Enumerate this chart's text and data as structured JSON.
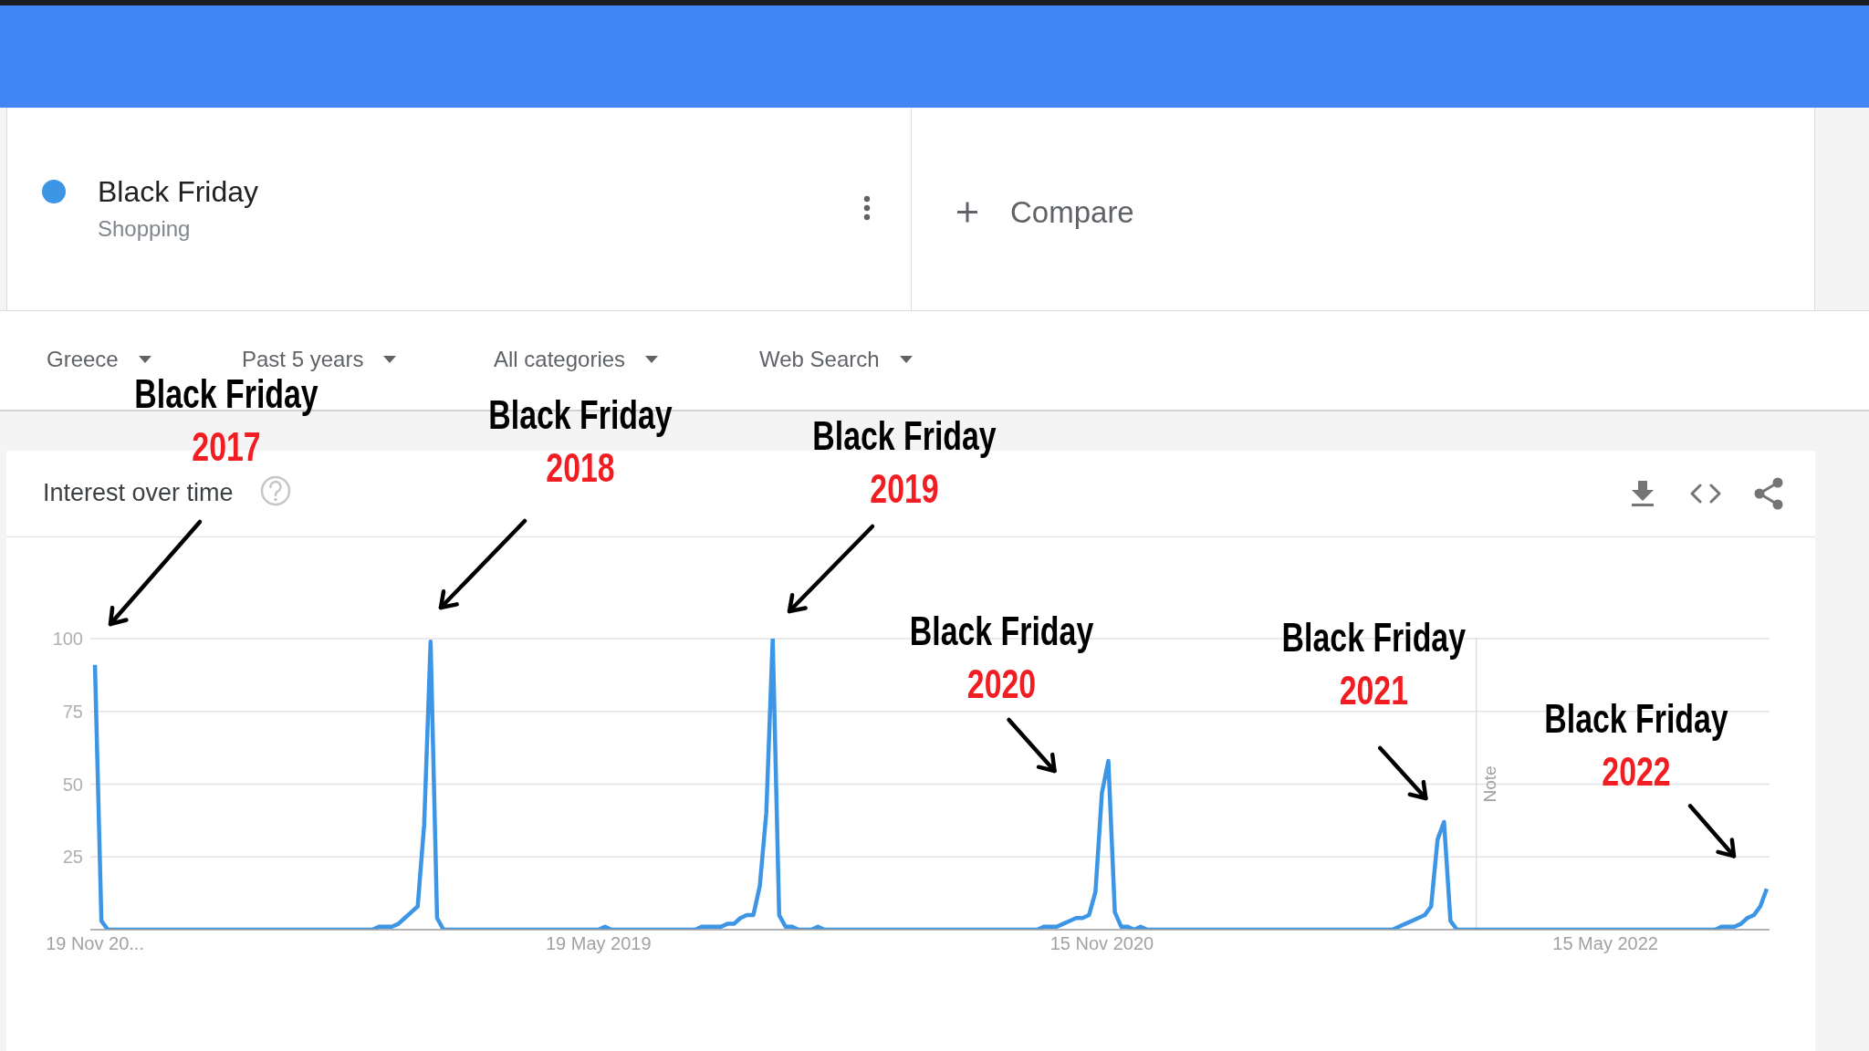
{
  "chart_data": {
    "type": "line",
    "title": "Interest over time",
    "x": [
      "2017-11-19",
      "2017-11-26",
      "2017-12-03",
      "2018-09-16",
      "2018-09-23",
      "2018-10-07",
      "2018-10-14",
      "2018-10-21",
      "2018-10-28",
      "2018-11-04",
      "2018-11-11",
      "2018-11-18",
      "2018-11-25",
      "2018-12-02",
      "2019-05-19",
      "2019-05-26",
      "2019-06-02",
      "2019-09-01",
      "2019-09-08",
      "2019-09-22",
      "2019-09-29",
      "2019-10-06",
      "2019-10-13",
      "2019-10-20",
      "2019-10-27",
      "2019-11-03",
      "2019-11-10",
      "2019-11-17",
      "2019-11-24",
      "2019-12-01",
      "2019-12-08",
      "2019-12-15",
      "2019-12-22",
      "2020-01-05",
      "2020-01-12",
      "2020-01-19",
      "2020-09-06",
      "2020-09-13",
      "2020-09-27",
      "2020-10-04",
      "2020-10-11",
      "2020-10-18",
      "2020-10-25",
      "2020-11-01",
      "2020-11-08",
      "2020-11-15",
      "2020-11-22",
      "2020-11-29",
      "2020-12-06",
      "2020-12-13",
      "2020-12-20",
      "2020-12-27",
      "2021-01-03",
      "2021-09-26",
      "2021-10-03",
      "2021-10-10",
      "2021-10-17",
      "2021-10-24",
      "2021-10-31",
      "2021-11-07",
      "2021-11-14",
      "2021-11-21",
      "2021-11-28",
      "2021-12-05",
      "2022-09-11",
      "2022-09-18",
      "2022-10-02",
      "2022-10-09",
      "2022-10-16",
      "2022-10-23",
      "2022-10-30",
      "2022-11-06"
    ],
    "series": [
      {
        "name": "Black Friday",
        "color": "#3d95e6",
        "values": [
          91,
          3,
          0,
          0,
          1,
          1,
          2,
          4,
          6,
          8,
          36,
          99,
          4,
          0,
          0,
          1,
          0,
          0,
          1,
          1,
          1,
          2,
          2,
          4,
          5,
          5,
          15,
          40,
          100,
          5,
          1,
          1,
          0,
          0,
          1,
          0,
          0,
          1,
          1,
          2,
          3,
          4,
          4,
          5,
          13,
          47,
          58,
          6,
          1,
          1,
          0,
          1,
          0,
          0,
          1,
          2,
          3,
          4,
          5,
          8,
          31,
          37,
          3,
          0,
          0,
          1,
          1,
          2,
          4,
          5,
          8,
          14
        ]
      }
    ],
    "xlim": [
      "2017-11-14",
      "2022-11-09"
    ],
    "xticks": [
      {
        "value": "2017-11-19",
        "label": "19 Nov 20..."
      },
      {
        "value": "2019-05-19",
        "label": "19 May 2019"
      },
      {
        "value": "2020-11-15",
        "label": "15 Nov 2020"
      },
      {
        "value": "2022-05-15",
        "label": "15 May 2022"
      }
    ],
    "ylim": [
      0,
      100
    ],
    "yticks": [
      25,
      50,
      75,
      100
    ],
    "grid": "y",
    "legend": "top left",
    "marker": "none",
    "line_style": "solid",
    "ref_lines": [
      {
        "axis": "x",
        "value": "2021-12-26",
        "label": "Note",
        "color": "#dadce0"
      }
    ],
    "annotations": [
      "Shopping",
      "Compare",
      "Greece",
      "Past 5 years",
      "All categories",
      "Web Search",
      "Black Friday\n2017",
      "Black Friday\n2018",
      "Black Friday\n2019",
      {
        "text": "Black Friday\n2020",
        "x": "2020-11-22",
        "y": 58
      },
      {
        "text": "Black Friday\n2021",
        "x": "2021-11-21",
        "y": 37
      },
      {
        "text": "Black Friday\n2022",
        "x": "2022-11-06",
        "y": 14
      }
    ]
  }
}
